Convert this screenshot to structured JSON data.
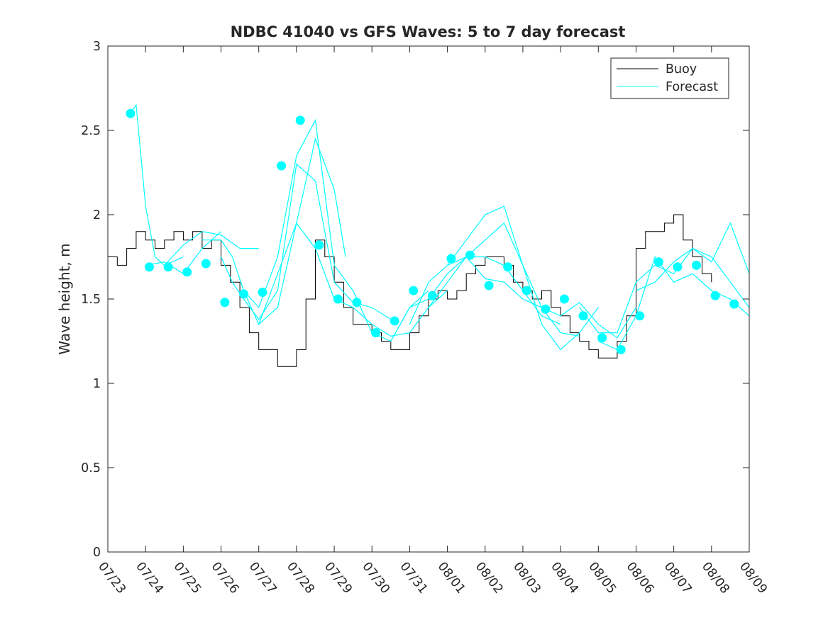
{
  "chart_data": {
    "type": "line",
    "title": "NDBC 41040 vs GFS Waves: 5 to 7 day forecast",
    "xlabel": "",
    "ylabel": "Wave height, m",
    "xlim": [
      0,
      17
    ],
    "ylim": [
      0,
      3
    ],
    "x_tick_values": [
      0,
      1,
      2,
      3,
      4,
      5,
      6,
      7,
      8,
      9,
      10,
      11,
      12,
      13,
      14,
      15,
      16,
      17
    ],
    "x_tick_labels": [
      "07/23",
      "07/24",
      "07/25",
      "07/26",
      "07/27",
      "07/28",
      "07/29",
      "07/30",
      "07/31",
      "08/01",
      "08/02",
      "08/03",
      "08/04",
      "08/05",
      "08/06",
      "08/07",
      "08/08",
      "08/09"
    ],
    "y_ticks": [
      0,
      0.5,
      1,
      1.5,
      2,
      2.5,
      3
    ],
    "y_tick_labels": [
      "0",
      "0.5",
      "1",
      "1.5",
      "2",
      "2.5",
      "3"
    ],
    "grid": false,
    "legend_position": "top-right",
    "colors": {
      "buoy": "#000000",
      "forecast": "#00ffff",
      "axes": "#262626"
    },
    "buoy": {
      "name": "Buoy",
      "x": [
        0.0,
        0.25,
        0.5,
        0.75,
        1.0,
        1.25,
        1.5,
        1.75,
        2.0,
        2.25,
        2.5,
        2.75,
        3.0,
        3.25,
        3.5,
        3.75,
        4.0,
        4.25,
        4.5,
        4.75,
        5.0,
        5.25,
        5.5,
        5.75,
        6.0,
        6.25,
        6.5,
        6.75,
        7.0,
        7.25,
        7.5,
        7.75,
        8.0,
        8.25,
        8.5,
        8.75,
        9.0,
        9.25,
        9.5,
        9.75,
        10.0,
        10.25,
        10.5,
        10.75,
        11.0,
        11.25,
        11.5,
        11.75,
        12.0,
        12.25,
        12.5,
        12.75,
        13.0,
        13.25,
        13.5,
        13.75,
        14.0,
        14.25,
        14.5,
        14.75,
        15.0,
        15.25,
        15.5,
        15.75,
        16.0,
        16.25,
        16.5,
        16.75,
        17.0
      ],
      "y": [
        1.75,
        1.7,
        1.8,
        1.9,
        1.85,
        1.8,
        1.85,
        1.9,
        1.85,
        1.9,
        1.8,
        1.85,
        1.7,
        1.6,
        1.45,
        1.3,
        1.2,
        1.2,
        1.1,
        1.1,
        1.2,
        1.5,
        1.85,
        1.75,
        1.6,
        1.45,
        1.35,
        1.35,
        1.3,
        1.25,
        1.2,
        1.2,
        1.3,
        1.4,
        1.5,
        1.55,
        1.5,
        1.55,
        1.65,
        1.7,
        1.75,
        1.75,
        1.7,
        1.6,
        1.55,
        1.5,
        1.55,
        1.45,
        1.4,
        1.3,
        1.25,
        1.2,
        1.15,
        1.15,
        1.25,
        1.4,
        1.8,
        1.9,
        1.9,
        1.95,
        2.0,
        1.85,
        1.75,
        1.65,
        1.6,
        null,
        null,
        null,
        null
      ]
    },
    "series": [
      {
        "name": "Forecast",
        "x": [
          0.6,
          0.75,
          1.0,
          1.25,
          1.5,
          2.0
        ],
        "y": [
          2.6,
          2.65,
          2.05,
          1.75,
          1.7,
          1.75
        ]
      },
      {
        "name": "",
        "x": [
          1.0,
          1.5,
          2.0,
          2.5,
          3.0
        ],
        "y": [
          1.7,
          1.72,
          1.65,
          1.8,
          1.9
        ]
      },
      {
        "name": "",
        "x": [
          1.5,
          2.0,
          2.5,
          3.0,
          3.5,
          4.0
        ],
        "y": [
          1.7,
          1.82,
          1.9,
          1.88,
          1.8,
          1.8
        ]
      },
      {
        "name": "",
        "x": [
          2.5,
          3.0,
          3.3,
          3.6,
          4.0,
          4.5,
          5.0,
          5.5,
          6.0,
          6.3
        ],
        "y": [
          1.85,
          1.85,
          1.75,
          1.55,
          1.35,
          1.45,
          1.95,
          2.45,
          2.15,
          1.75
        ]
      },
      {
        "name": "",
        "x": [
          3.0,
          3.3,
          3.6,
          4.0,
          4.5,
          5.0,
          5.5,
          6.0,
          6.5,
          7.0,
          7.5
        ],
        "y": [
          1.75,
          1.6,
          1.5,
          1.38,
          1.55,
          2.3,
          2.2,
          1.6,
          1.48,
          1.45,
          1.38
        ]
      },
      {
        "name": "",
        "x": [
          3.6,
          4.0,
          4.5,
          5.0,
          5.5,
          6.0,
          6.5,
          7.0,
          7.5,
          8.0,
          8.5
        ],
        "y": [
          1.55,
          1.45,
          1.75,
          2.35,
          2.56,
          1.7,
          1.55,
          1.3,
          1.25,
          1.45,
          1.55
        ]
      },
      {
        "name": "",
        "x": [
          4.0,
          4.5,
          5.0,
          5.5,
          6.0,
          6.5,
          7.0,
          7.5,
          8.0,
          8.5,
          9.0
        ],
        "y": [
          1.35,
          1.65,
          1.95,
          1.8,
          1.5,
          1.45,
          1.35,
          1.28,
          1.3,
          1.45,
          1.55
        ]
      },
      {
        "name": "",
        "x": [
          7.5,
          8.0,
          8.5,
          9.0,
          9.5,
          10.0,
          10.5,
          11.0,
          11.5,
          12.0
        ],
        "y": [
          1.25,
          1.45,
          1.5,
          1.65,
          1.75,
          1.75,
          1.7,
          1.55,
          1.4,
          1.35
        ]
      },
      {
        "name": "",
        "x": [
          8.0,
          8.5,
          9.0,
          9.5,
          10.0,
          10.5,
          11.0,
          11.5,
          12.0,
          12.5
        ],
        "y": [
          1.35,
          1.6,
          1.7,
          1.85,
          2.0,
          2.05,
          1.7,
          1.45,
          1.3,
          1.28
        ]
      },
      {
        "name": "",
        "x": [
          8.5,
          9.0,
          9.5,
          10.0,
          10.5,
          11.0,
          11.5,
          12.0,
          12.5,
          13.0
        ],
        "y": [
          1.45,
          1.6,
          1.75,
          1.85,
          1.95,
          1.7,
          1.35,
          1.2,
          1.3,
          1.45
        ]
      },
      {
        "name": "",
        "x": [
          9.0,
          9.5,
          10.0,
          10.5,
          11.0,
          11.5,
          12.0,
          12.5,
          13.0,
          13.5,
          14.0
        ],
        "y": [
          1.7,
          1.75,
          1.62,
          1.6,
          1.5,
          1.45,
          1.4,
          1.48,
          1.35,
          1.27,
          1.45
        ]
      },
      {
        "name": "",
        "x": [
          12.5,
          13.0,
          13.5,
          14.0,
          14.5,
          15.0,
          15.5,
          16.0,
          16.5,
          17.0
        ],
        "y": [
          1.45,
          1.3,
          1.3,
          1.6,
          1.7,
          1.65,
          1.8,
          1.75,
          1.6,
          1.45
        ]
      },
      {
        "name": "",
        "x": [
          13.0,
          13.5,
          14.0,
          14.5,
          15.0,
          15.5,
          16.0,
          16.5,
          17.0
        ],
        "y": [
          1.25,
          1.2,
          1.4,
          1.75,
          1.6,
          1.65,
          1.55,
          1.5,
          1.4
        ]
      },
      {
        "name": "",
        "x": [
          14.0,
          14.5,
          15.0,
          15.5,
          16.0,
          16.5,
          17.0
        ],
        "y": [
          1.55,
          1.6,
          1.72,
          1.8,
          1.72,
          1.95,
          1.65
        ]
      }
    ],
    "forecast_markers": {
      "x": [
        0.6,
        1.1,
        1.6,
        2.1,
        2.6,
        3.1,
        3.6,
        4.1,
        4.6,
        5.1,
        5.6,
        6.1,
        6.6,
        7.1,
        7.6,
        8.1,
        8.6,
        9.1,
        9.6,
        10.1,
        10.6,
        11.1,
        11.6,
        12.1,
        12.6,
        13.1,
        13.6,
        14.1,
        14.6,
        15.1,
        15.6,
        16.1,
        16.6
      ],
      "y": [
        2.6,
        1.69,
        1.69,
        1.66,
        1.71,
        1.48,
        1.53,
        1.54,
        2.29,
        2.56,
        1.82,
        1.5,
        1.48,
        1.3,
        1.37,
        1.55,
        1.52,
        1.74,
        1.76,
        1.58,
        1.69,
        1.55,
        1.44,
        1.5,
        1.4,
        1.27,
        1.2,
        1.4,
        1.72,
        1.69,
        1.7,
        1.52,
        1.47
      ]
    }
  }
}
